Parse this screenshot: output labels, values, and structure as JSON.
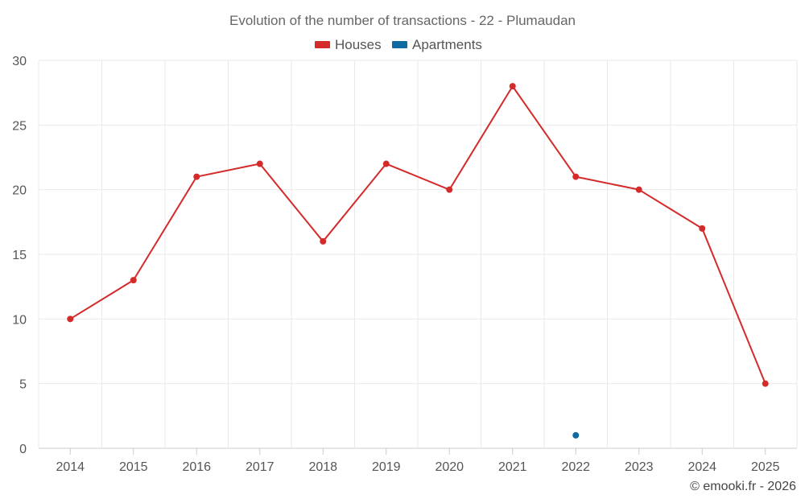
{
  "chart_data": {
    "type": "line",
    "title": "Evolution of the number of transactions - 22 - Plumaudan",
    "categories": [
      "2014",
      "2015",
      "2016",
      "2017",
      "2018",
      "2019",
      "2020",
      "2021",
      "2022",
      "2023",
      "2024",
      "2025"
    ],
    "ylim": [
      0,
      30
    ],
    "yticks": [
      0,
      5,
      10,
      15,
      20,
      25,
      30
    ],
    "grid": true,
    "legend_position": "top-center",
    "series": [
      {
        "name": "Houses",
        "color": "#d42a2a",
        "values": [
          10,
          13,
          21,
          22,
          16,
          22,
          20,
          28,
          21,
          20,
          17,
          5
        ]
      },
      {
        "name": "Apartments",
        "color": "#0e6aa0",
        "values": [
          null,
          null,
          null,
          null,
          null,
          null,
          null,
          null,
          1,
          null,
          null,
          null
        ]
      }
    ]
  },
  "credit": "© emooki.fr - 2026"
}
